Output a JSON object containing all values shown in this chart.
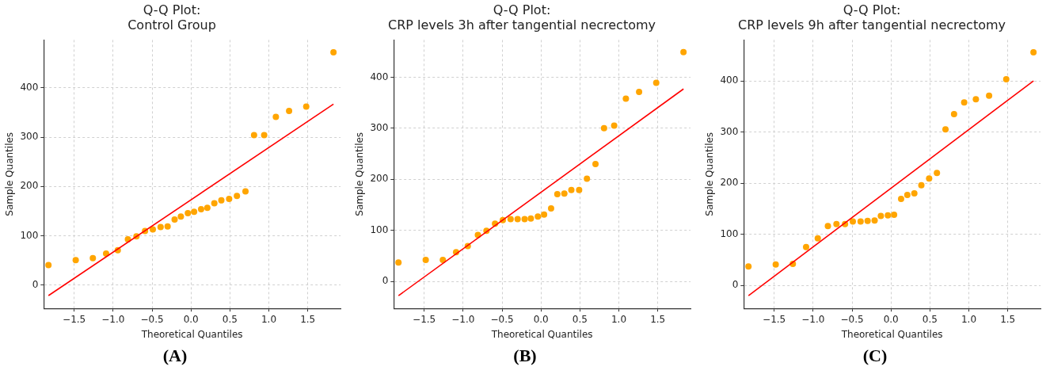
{
  "chart_data": [
    {
      "type": "scatter",
      "title": "Q-Q Plot:\nControl Group",
      "xlabel": "Theoretical Quantiles",
      "ylabel": "Sample Quantiles",
      "grid": true,
      "marker": "circle",
      "xlim": [
        -1.89,
        1.92
      ],
      "ylim": [
        -47,
        497
      ],
      "xticks": [
        {
          "value": -1.5,
          "label": "−1.5"
        },
        {
          "value": -1,
          "label": "−1.0"
        },
        {
          "value": -0.5,
          "label": "−0.5"
        },
        {
          "value": 0,
          "label": "0.0"
        },
        {
          "value": 0.5,
          "label": "0.5"
        },
        {
          "value": 1,
          "label": "1.0"
        },
        {
          "value": 1.5,
          "label": "1.5"
        }
      ],
      "yticks": [
        0,
        100,
        200,
        300,
        400
      ],
      "series": [
        {
          "type": "scatter",
          "color": "#ffa500",
          "x": [
            -1.83,
            -1.48,
            -1.26,
            -1.09,
            -0.94,
            -0.81,
            -0.7,
            -0.59,
            -0.49,
            -0.39,
            -0.3,
            -0.21,
            -0.13,
            -0.04,
            0.04,
            0.13,
            0.21,
            0.3,
            0.39,
            0.49,
            0.59,
            0.7,
            0.81,
            0.94,
            1.09,
            1.26,
            1.48,
            1.83
          ],
          "values": [
            41,
            51,
            55,
            64,
            71,
            93,
            99,
            110,
            113,
            118,
            119,
            133,
            139,
            146,
            149,
            154,
            157,
            166,
            172,
            175,
            181,
            190,
            304,
            304,
            341,
            353,
            362,
            472
          ]
        },
        {
          "type": "line",
          "color": "#ff0000",
          "marker": "none",
          "x": [
            -1.83,
            1.83
          ],
          "values": [
            -21,
            367
          ]
        }
      ],
      "annotations": [
        "(A)"
      ]
    },
    {
      "type": "scatter",
      "title": "Q-Q Plot:\nCRP levels 3h after tangential necrectomy",
      "xlabel": "Theoretical Quantiles",
      "ylabel": "Sample Quantiles",
      "grid": true,
      "marker": "circle",
      "xlim": [
        -1.89,
        1.92
      ],
      "ylim": [
        -53,
        473
      ],
      "xticks": [
        {
          "value": -1.5,
          "label": "−1.5"
        },
        {
          "value": -1,
          "label": "−1.0"
        },
        {
          "value": -0.5,
          "label": "−0.5"
        },
        {
          "value": 0,
          "label": "0.0"
        },
        {
          "value": 0.5,
          "label": "0.5"
        },
        {
          "value": 1,
          "label": "1.0"
        },
        {
          "value": 1.5,
          "label": "1.5"
        }
      ],
      "yticks": [
        0,
        100,
        200,
        300,
        400
      ],
      "series": [
        {
          "type": "scatter",
          "color": "#ffa500",
          "x": [
            -1.83,
            -1.48,
            -1.26,
            -1.09,
            -0.94,
            -0.81,
            -0.7,
            -0.59,
            -0.49,
            -0.39,
            -0.3,
            -0.21,
            -0.13,
            -0.04,
            0.04,
            0.13,
            0.21,
            0.3,
            0.39,
            0.49,
            0.59,
            0.7,
            0.81,
            0.94,
            1.09,
            1.26,
            1.48,
            1.83
          ],
          "values": [
            37,
            42,
            42,
            57,
            69,
            91,
            99,
            113,
            120,
            122,
            122,
            122,
            123,
            127,
            131,
            143,
            171,
            172,
            179,
            179,
            201,
            230,
            300,
            305,
            358,
            371,
            389,
            449
          ]
        },
        {
          "type": "line",
          "color": "#ff0000",
          "marker": "none",
          "x": [
            -1.83,
            1.83
          ],
          "values": [
            -28,
            377
          ]
        }
      ],
      "annotations": [
        "(B)"
      ]
    },
    {
      "type": "scatter",
      "title": "Q-Q Plot:\nCRP levels 9h after tangential necrectomy",
      "xlabel": "Theoretical Quantiles",
      "ylabel": "Sample Quantiles",
      "grid": true,
      "marker": "circle",
      "xlim": [
        -1.89,
        1.92
      ],
      "ylim": [
        -45,
        480
      ],
      "xticks": [
        {
          "value": -1.5,
          "label": "−1.5"
        },
        {
          "value": -1,
          "label": "−1.0"
        },
        {
          "value": -0.5,
          "label": "−0.5"
        },
        {
          "value": 0,
          "label": "0.0"
        },
        {
          "value": 0.5,
          "label": "0.5"
        },
        {
          "value": 1,
          "label": "1.0"
        },
        {
          "value": 1.5,
          "label": "1.5"
        }
      ],
      "yticks": [
        0,
        100,
        200,
        300,
        400
      ],
      "series": [
        {
          "type": "scatter",
          "color": "#ffa500",
          "x": [
            -1.83,
            -1.48,
            -1.26,
            -1.09,
            -0.94,
            -0.81,
            -0.7,
            -0.59,
            -0.49,
            -0.39,
            -0.3,
            -0.21,
            -0.13,
            -0.04,
            0.04,
            0.13,
            0.21,
            0.3,
            0.39,
            0.49,
            0.59,
            0.7,
            0.81,
            0.94,
            1.09,
            1.26,
            1.48,
            1.83
          ],
          "values": [
            37,
            41,
            42,
            75,
            92,
            116,
            120,
            120,
            125,
            125,
            126,
            127,
            136,
            137,
            138,
            169,
            177,
            180,
            196,
            209,
            220,
            305,
            335,
            358,
            364,
            371,
            403,
            456
          ]
        },
        {
          "type": "line",
          "color": "#ff0000",
          "marker": "none",
          "x": [
            -1.83,
            1.83
          ],
          "values": [
            -20,
            400
          ]
        }
      ],
      "annotations": [
        "(C)"
      ]
    }
  ]
}
